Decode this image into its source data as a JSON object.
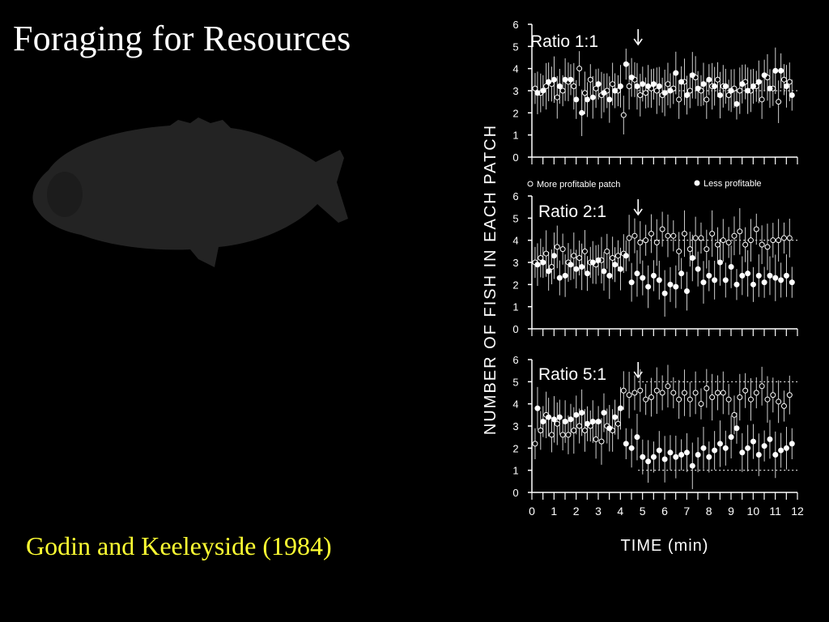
{
  "slide": {
    "title": "Foraging for Resources",
    "citation": "Godin and Keeleyside (1984)",
    "fish_icon": "fish-silhouette-icon",
    "colors": {
      "background": "#000000",
      "title": "#ffffff",
      "citation": "#ffff33",
      "silhouette": "#232323",
      "figure_ink": "#ffffff"
    }
  },
  "chart_data": {
    "type": "scatter",
    "ylabel": "NUMBER OF FISH IN EACH PATCH",
    "xlabel": "TIME (min)",
    "xlim": [
      0,
      12
    ],
    "x_ticks": [
      "0",
      "1",
      "2",
      "3",
      "4",
      "5",
      "6",
      "7",
      "8",
      "9",
      "10",
      "11",
      "12"
    ],
    "ylim": [
      0,
      6
    ],
    "y_ticks": [
      "0",
      "1",
      "2",
      "3",
      "4",
      "5",
      "6"
    ],
    "legend": {
      "open_marker": "More profitable patch",
      "filled_marker": "Less profitable"
    },
    "marker_change_time": 4.8,
    "x": [
      0.2,
      0.45,
      0.7,
      0.95,
      1.2,
      1.45,
      1.7,
      1.95,
      2.2,
      2.45,
      2.7,
      2.95,
      3.2,
      3.45,
      3.7,
      3.95,
      4.2,
      4.45,
      4.7,
      4.95,
      5.2,
      5.45,
      5.7,
      5.95,
      6.2,
      6.45,
      6.7,
      6.95,
      7.2,
      7.45,
      7.7,
      7.95,
      8.2,
      8.45,
      8.7,
      8.95,
      9.2,
      9.45,
      9.7,
      9.95,
      10.2,
      10.45,
      10.7,
      10.95,
      11.2,
      11.45,
      11.7
    ],
    "panels": [
      {
        "label": "Ratio 1:1",
        "ideal_line": 3,
        "series": [
          {
            "name": "More profitable patch",
            "marker": "open",
            "values": [
              3.1,
              2.9,
              3.2,
              3.3,
              2.7,
              3.0,
              3.4,
              3.2,
              4.0,
              2.9,
              3.5,
              3.1,
              2.8,
              3.0,
              3.3,
              3.0,
              1.9,
              3.2,
              3.5,
              2.8,
              2.9,
              3.1,
              3.0,
              2.8,
              3.3,
              3.1,
              2.6,
              3.4,
              3.0,
              3.6,
              3.0,
              2.6,
              3.2,
              3.5,
              3.2,
              2.8,
              3.1,
              3.0,
              3.4,
              3.0,
              3.2,
              2.6,
              3.6,
              3.1,
              2.5,
              3.5,
              3.4
            ]
          },
          {
            "name": "Less profitable",
            "marker": "filled",
            "values": [
              2.9,
              3.0,
              3.4,
              3.5,
              3.2,
              3.5,
              3.5,
              2.6,
              2.0,
              2.6,
              2.7,
              3.3,
              2.9,
              2.6,
              3.0,
              3.2,
              4.2,
              3.6,
              3.2,
              3.3,
              3.2,
              3.3,
              3.2,
              2.9,
              3.0,
              3.8,
              3.4,
              2.8,
              3.7,
              3.1,
              3.3,
              3.5,
              3.2,
              2.8,
              3.2,
              3.0,
              2.4,
              3.3,
              3.0,
              3.2,
              3.4,
              3.7,
              3.1,
              3.9,
              3.9,
              3.2,
              2.8
            ]
          }
        ]
      },
      {
        "label": "Ratio 2:1",
        "ideal_line": 4,
        "series": [
          {
            "name": "More profitable patch",
            "marker": "open",
            "values": [
              3.0,
              3.2,
              3.4,
              2.8,
              3.7,
              3.6,
              3.0,
              3.3,
              3.2,
              3.5,
              3.0,
              2.9,
              3.1,
              3.5,
              3.2,
              3.3,
              3.4,
              4.1,
              4.2,
              3.9,
              4.0,
              4.3,
              3.9,
              4.5,
              4.2,
              4.2,
              3.5,
              4.3,
              3.6,
              4.1,
              4.1,
              3.6,
              4.3,
              3.8,
              4.0,
              3.9,
              4.2,
              4.4,
              3.8,
              4.0,
              4.5,
              3.8,
              3.7,
              4.0,
              4.0,
              4.1,
              4.1
            ]
          },
          {
            "name": "Less profitable",
            "marker": "filled",
            "values": [
              2.9,
              3.0,
              2.6,
              3.3,
              2.3,
              2.4,
              2.9,
              2.7,
              2.8,
              2.5,
              3.0,
              3.1,
              2.6,
              2.4,
              2.9,
              2.7,
              3.3,
              2.1,
              2.5,
              2.3,
              1.9,
              2.4,
              2.2,
              1.6,
              2.0,
              1.9,
              2.5,
              1.7,
              3.2,
              2.7,
              2.1,
              2.4,
              2.2,
              3.0,
              2.2,
              2.8,
              2.0,
              2.4,
              2.5,
              2.0,
              2.4,
              2.1,
              2.4,
              2.3,
              2.2,
              2.4,
              2.1
            ]
          }
        ]
      },
      {
        "label": "Ratio 5:1",
        "ideal_line": 5,
        "ideal_line_low": 1,
        "series": [
          {
            "name": "More profitable patch",
            "marker": "open",
            "values": [
              2.2,
              2.8,
              3.5,
              2.6,
              3.1,
              2.6,
              2.6,
              2.8,
              3.0,
              2.8,
              3.0,
              2.4,
              2.3,
              3.0,
              2.8,
              3.1,
              4.6,
              4.4,
              4.5,
              4.6,
              4.2,
              4.3,
              4.6,
              4.5,
              4.8,
              4.5,
              4.2,
              4.5,
              4.2,
              4.5,
              4.0,
              4.7,
              4.3,
              4.5,
              4.5,
              4.2,
              3.5,
              4.3,
              4.6,
              4.2,
              4.5,
              4.8,
              4.2,
              4.4,
              4.1,
              3.9,
              4.4
            ]
          },
          {
            "name": "Less profitable",
            "marker": "filled",
            "values": [
              3.8,
              3.2,
              3.4,
              3.3,
              3.4,
              3.2,
              3.3,
              3.5,
              3.6,
              3.1,
              3.2,
              3.2,
              3.6,
              2.9,
              3.4,
              3.8,
              2.2,
              2.0,
              2.5,
              1.6,
              1.4,
              1.6,
              1.9,
              1.5,
              1.8,
              1.6,
              1.7,
              1.8,
              1.2,
              1.7,
              2.0,
              1.6,
              1.9,
              2.2,
              2.0,
              2.5,
              2.9,
              1.8,
              2.0,
              2.3,
              1.7,
              2.1,
              2.4,
              1.7,
              1.9,
              2.0,
              2.2
            ]
          }
        ]
      }
    ]
  }
}
